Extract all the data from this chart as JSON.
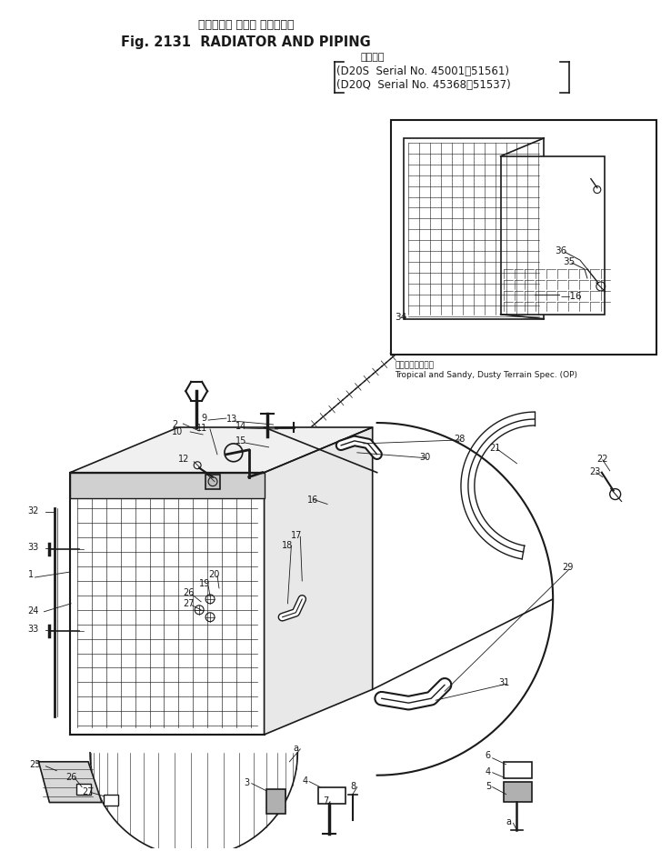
{
  "title_jp": "ラジエータ および パイビング",
  "title_en": "Fig. 2131  RADIATOR AND PIPING",
  "subtitle_jp": "適用号機",
  "subtitle_line1": "(D20S  Serial No. 45001～51561)",
  "subtitle_line2": "(D20Q  Serial No. 45368～51537)",
  "caption_jp": "熱帯、砂岘地仕様",
  "caption_en": "Tropical and Sandy, Dusty Terrain Spec. (OP)",
  "bg_color": "#ffffff",
  "line_color": "#1a1a1a"
}
